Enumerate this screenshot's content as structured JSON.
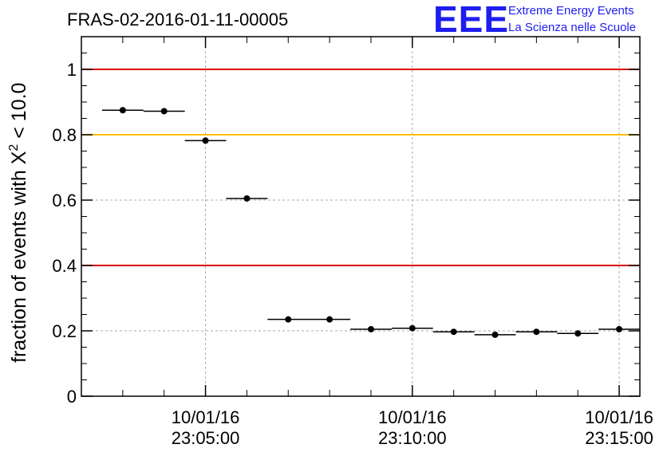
{
  "chart_data": {
    "type": "scatter",
    "title": "FRAS-02-2016-01-11-00005",
    "ylabel": "fraction of events with X² < 10.0",
    "ylabel_main": "fraction of events with X",
    "ylabel_sup": "2",
    "ylabel_tail": " < 10.0",
    "ylim": [
      0,
      1.1
    ],
    "y_ticks": [
      0,
      0.2,
      0.4,
      0.6,
      0.8,
      1
    ],
    "y_tick_labels": [
      "0",
      "0.2",
      "0.4",
      "0.6",
      "0.8",
      "1"
    ],
    "x_ticks": [
      {
        "time": "23:05:00",
        "date": "10/01/16"
      },
      {
        "time": "23:10:00",
        "date": "10/01/16"
      },
      {
        "time": "23:15:00",
        "date": "10/01/16"
      }
    ],
    "xlim": [
      "23:02:00",
      "23:15:30"
    ],
    "grid": true,
    "reference_lines": [
      {
        "y": 1.0,
        "color": "#e00000"
      },
      {
        "y": 0.8,
        "color": "#ffc000"
      },
      {
        "y": 0.4,
        "color": "#e00000"
      }
    ],
    "points": [
      {
        "x": "23:03:00",
        "xerr_s": 30,
        "y": 0.875
      },
      {
        "x": "23:04:00",
        "xerr_s": 30,
        "y": 0.872
      },
      {
        "x": "23:05:00",
        "xerr_s": 30,
        "y": 0.782
      },
      {
        "x": "23:06:00",
        "xerr_s": 30,
        "y": 0.605
      },
      {
        "x": "23:07:00",
        "xerr_s": 30,
        "y": 0.235
      },
      {
        "x": "23:08:00",
        "xerr_s": 30,
        "y": 0.235
      },
      {
        "x": "23:09:00",
        "xerr_s": 30,
        "y": 0.205
      },
      {
        "x": "23:10:00",
        "xerr_s": 30,
        "y": 0.208
      },
      {
        "x": "23:11:00",
        "xerr_s": 30,
        "y": 0.197
      },
      {
        "x": "23:12:00",
        "xerr_s": 30,
        "y": 0.188
      },
      {
        "x": "23:13:00",
        "xerr_s": 30,
        "y": 0.197
      },
      {
        "x": "23:14:00",
        "xerr_s": 30,
        "y": 0.192
      },
      {
        "x": "23:15:00",
        "xerr_s": 30,
        "y": 0.205
      }
    ]
  },
  "logo": {
    "mark": "EEE",
    "line1": "Extreme Energy Events",
    "line2": "La Scienza nelle Scuole",
    "color": "#1e1ef0"
  }
}
